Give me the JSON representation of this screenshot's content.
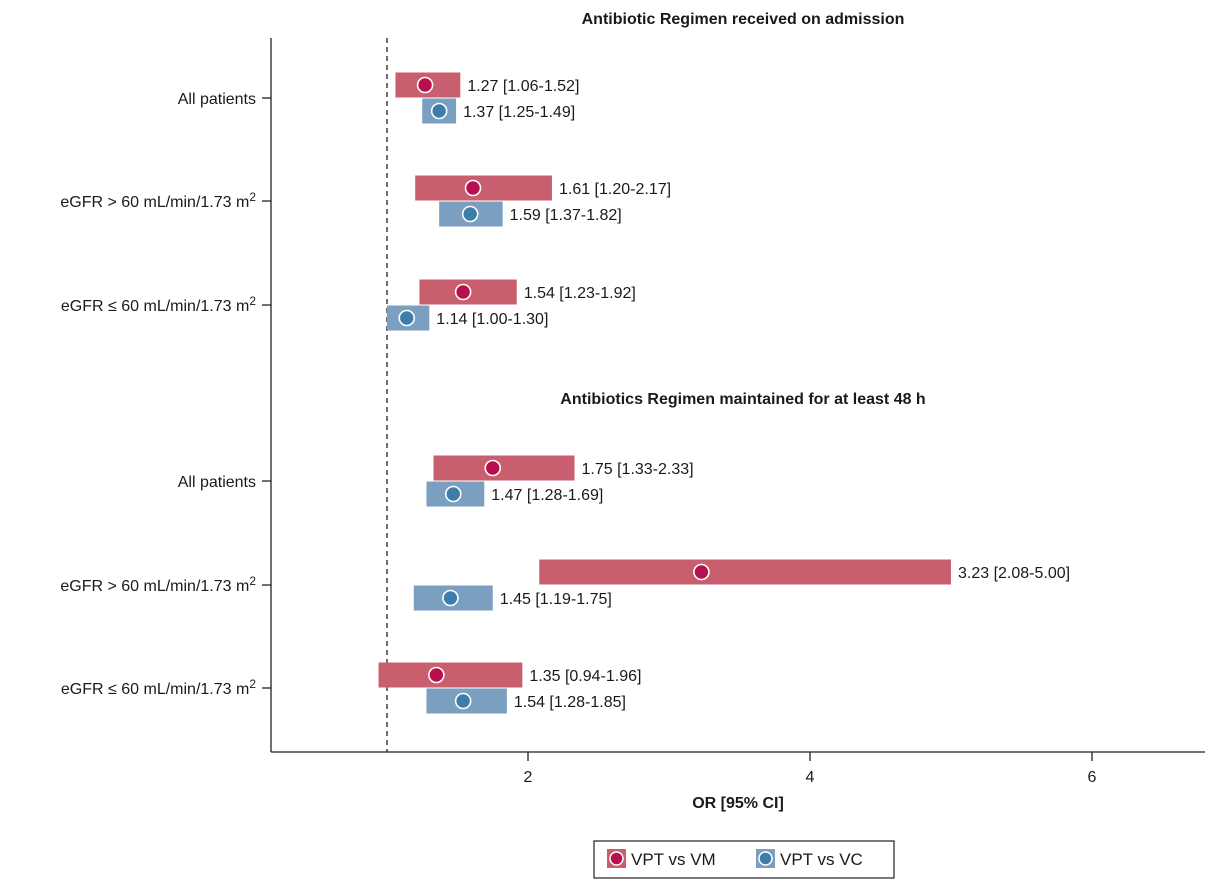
{
  "chart_data": {
    "type": "forest",
    "xlabel": "OR [95% CI]",
    "xlim": [
      0.2,
      6.8
    ],
    "xticks": [
      2,
      4,
      6
    ],
    "reference_line": 1,
    "grid": false,
    "legend_position": "bottom-center",
    "colors": {
      "VPT vs VM": "#c95f6e",
      "VPT vs VC": "#7a9fc0",
      "dot_VM": "#b8104d",
      "dot_VC": "#3c7ea9"
    },
    "series": [
      {
        "name": "VPT vs VM"
      },
      {
        "name": "VPT vs VC"
      }
    ],
    "sections": [
      {
        "title": "Antibiotic Regimen received on admission",
        "groups": [
          {
            "label": "All patients",
            "rows": [
              {
                "series": "VPT vs VM",
                "or": 1.27,
                "lo": 1.06,
                "hi": 1.52,
                "text": "1.27 [1.06-1.52]"
              },
              {
                "series": "VPT vs VC",
                "or": 1.37,
                "lo": 1.25,
                "hi": 1.49,
                "text": "1.37 [1.25-1.49]"
              }
            ]
          },
          {
            "label": "eGFR > 60 mL/min/1.73 m",
            "sup": "2",
            "rows": [
              {
                "series": "VPT vs VM",
                "or": 1.61,
                "lo": 1.2,
                "hi": 2.17,
                "text": "1.61 [1.20-2.17]"
              },
              {
                "series": "VPT vs VC",
                "or": 1.59,
                "lo": 1.37,
                "hi": 1.82,
                "text": "1.59 [1.37-1.82]"
              }
            ]
          },
          {
            "label": "eGFR ≤ 60 mL/min/1.73 m",
            "sup": "2",
            "rows": [
              {
                "series": "VPT vs VM",
                "or": 1.54,
                "lo": 1.23,
                "hi": 1.92,
                "text": "1.54 [1.23-1.92]"
              },
              {
                "series": "VPT vs VC",
                "or": 1.14,
                "lo": 1.0,
                "hi": 1.3,
                "text": "1.14 [1.00-1.30]"
              }
            ]
          }
        ]
      },
      {
        "title": "Antibiotics Regimen maintained for at least 48 h",
        "groups": [
          {
            "label": "All patients",
            "rows": [
              {
                "series": "VPT vs VM",
                "or": 1.75,
                "lo": 1.33,
                "hi": 2.33,
                "text": "1.75 [1.33-2.33]"
              },
              {
                "series": "VPT vs VC",
                "or": 1.47,
                "lo": 1.28,
                "hi": 1.69,
                "text": "1.47 [1.28-1.69]"
              }
            ]
          },
          {
            "label": "eGFR > 60 mL/min/1.73 m",
            "sup": "2",
            "rows": [
              {
                "series": "VPT vs VM",
                "or": 3.23,
                "lo": 2.08,
                "hi": 5.0,
                "text": "3.23 [2.08-5.00]"
              },
              {
                "series": "VPT vs VC",
                "or": 1.45,
                "lo": 1.19,
                "hi": 1.75,
                "text": "1.45 [1.19-1.75]"
              }
            ]
          },
          {
            "label": "eGFR ≤ 60 mL/min/1.73 m",
            "sup": "2",
            "rows": [
              {
                "series": "VPT vs VM",
                "or": 1.35,
                "lo": 0.94,
                "hi": 1.96,
                "text": "1.35 [0.94-1.96]"
              },
              {
                "series": "VPT vs VC",
                "or": 1.54,
                "lo": 1.28,
                "hi": 1.85,
                "text": "1.54 [1.28-1.85]"
              }
            ]
          }
        ]
      }
    ]
  }
}
